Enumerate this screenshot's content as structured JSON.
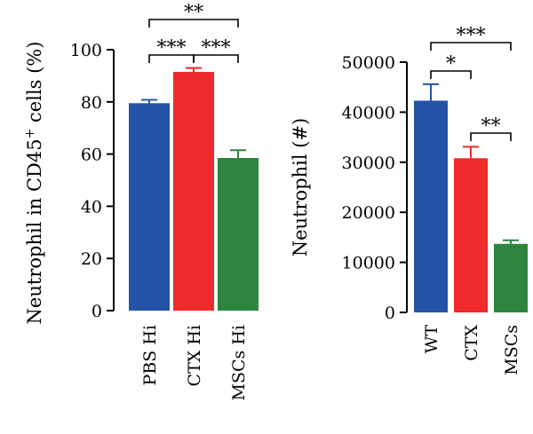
{
  "chart_data": [
    {
      "type": "bar",
      "ylabel_main": "Neutrophil in CD45",
      "ylabel_sup": "+",
      "ylabel_tail": " cells (%)",
      "categories": [
        "PBS Hi",
        "CTX Hi",
        "MSCs Hi"
      ],
      "values": [
        79.5,
        91.5,
        58.5
      ],
      "errors": [
        1.3,
        1.5,
        3.0
      ],
      "colors": [
        "#2553a6",
        "#ee2a2a",
        "#2e8540"
      ],
      "ylim": [
        0,
        100
      ],
      "yticks": [
        0,
        20,
        40,
        60,
        80,
        100
      ],
      "significance": [
        {
          "from": 0,
          "to": 2,
          "label": "**"
        },
        {
          "from": 0,
          "to": 1,
          "label": "***"
        },
        {
          "from": 1,
          "to": 2,
          "label": "***"
        }
      ]
    },
    {
      "type": "bar",
      "ylabel": "Neutrophil (#)",
      "categories": [
        "WT",
        "CTX",
        "MSCs"
      ],
      "values": [
        42300,
        30800,
        13700
      ],
      "errors": [
        3300,
        2300,
        700
      ],
      "colors": [
        "#2553a6",
        "#ee2a2a",
        "#2e8540"
      ],
      "ylim": [
        0,
        50000
      ],
      "yticks": [
        0,
        10000,
        20000,
        30000,
        40000,
        50000
      ],
      "significance": [
        {
          "from": 0,
          "to": 2,
          "label": "***"
        },
        {
          "from": 0,
          "to": 1,
          "label": "*"
        },
        {
          "from": 1,
          "to": 2,
          "label": "**"
        }
      ]
    }
  ]
}
